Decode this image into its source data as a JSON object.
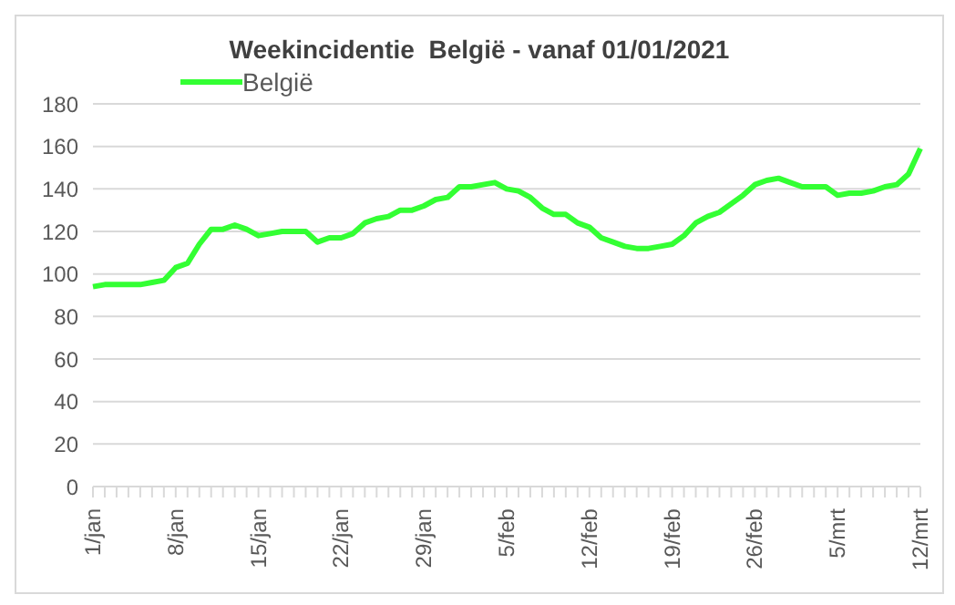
{
  "chart_data": {
    "type": "line",
    "title": "Weekincidentie  België - vanaf 01/01/2021",
    "categories": [
      "1/jan",
      null,
      null,
      null,
      null,
      null,
      null,
      "8/jan",
      null,
      null,
      null,
      null,
      null,
      null,
      "15/jan",
      null,
      null,
      null,
      null,
      null,
      null,
      "22/jan",
      null,
      null,
      null,
      null,
      null,
      null,
      "29/jan",
      null,
      null,
      null,
      null,
      null,
      null,
      "5/feb",
      null,
      null,
      null,
      null,
      null,
      null,
      "12/feb",
      null,
      null,
      null,
      null,
      null,
      null,
      "19/feb",
      null,
      null,
      null,
      null,
      null,
      null,
      "26/feb",
      null,
      null,
      null,
      null,
      null,
      null,
      "5/mrt",
      null,
      null,
      null,
      null,
      null,
      null,
      "12/mrt"
    ],
    "series": [
      {
        "name": "België",
        "color": "#33ff33",
        "values": [
          94,
          95,
          95,
          95,
          95,
          96,
          97,
          103,
          105,
          114,
          121,
          121,
          123,
          121,
          118,
          119,
          120,
          120,
          120,
          115,
          117,
          117,
          119,
          124,
          126,
          127,
          130,
          130,
          132,
          135,
          136,
          141,
          141,
          142,
          143,
          140,
          139,
          136,
          131,
          128,
          128,
          124,
          122,
          117,
          115,
          113,
          112,
          112,
          113,
          114,
          118,
          124,
          127,
          129,
          133,
          137,
          142,
          144,
          145,
          143,
          141,
          141,
          141,
          137,
          138,
          138,
          139,
          141,
          142,
          147,
          159
        ]
      }
    ],
    "ylim": [
      0,
      180
    ],
    "yticks": [
      0,
      20,
      40,
      60,
      80,
      100,
      120,
      140,
      160,
      180
    ],
    "grid": "y",
    "legend": "top left",
    "marker": "none",
    "line_style": "solid"
  }
}
